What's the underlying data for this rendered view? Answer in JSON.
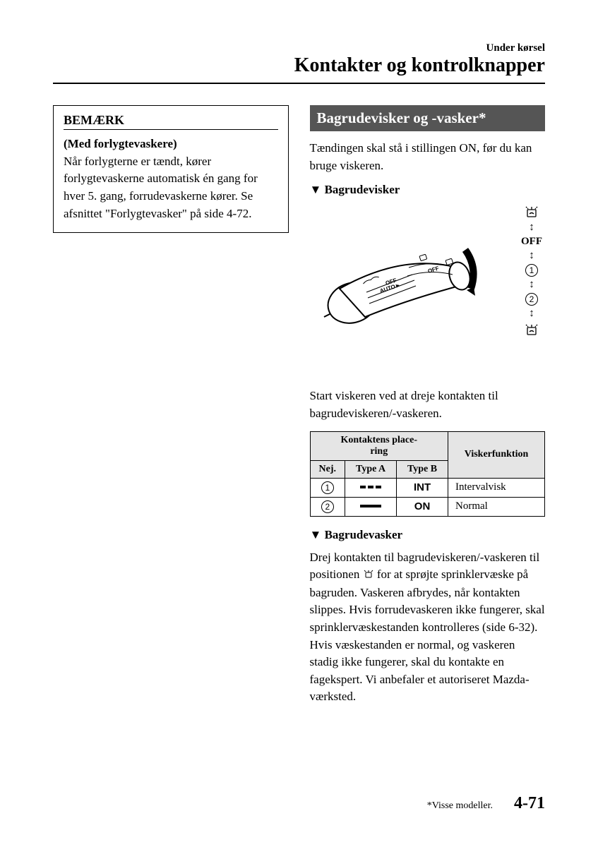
{
  "header": {
    "section": "Under kørsel",
    "title": "Kontakter og kontrolknapper"
  },
  "left": {
    "note_title": "BEMÆRK",
    "note_sub": "(Med forlygtevaskere)",
    "note_text": "Når forlygterne er tændt, kører forlygtevaskerne automatisk én gang for hver 5. gang, forrudevaskerne kører. Se afsnittet \"Forlygtevasker\" på side 4-72."
  },
  "right": {
    "banner": "Bagrudevisker og -vasker*",
    "intro": "Tændingen skal stå i stillingen ON, før du kan bruge viskeren.",
    "sub1": "Bagrudevisker",
    "ladder_off": "OFF",
    "after_diagram": "Start viskeren ved at dreje kontakten til bagrudeviskeren/-vaskeren.",
    "table": {
      "h1": "Kontaktens place-\nring",
      "h2": "Viskerfunktion",
      "h_nej": "Nej.",
      "h_typeA": "Type A",
      "h_typeB": "Type B",
      "r1_b": "INT",
      "r1_func": "Intervalvisk",
      "r2_b": "ON",
      "r2_func": "Normal"
    },
    "sub2": "Bagrudevasker",
    "washer_p1": "Drej kontakten til bagrudeviskeren/-vaskeren til positionen",
    "washer_p2": "for at sprøjte sprinklervæske på bagruden. Vaskeren afbrydes, når kontakten slippes. Hvis forrudevaskeren ikke fungerer, skal sprinklervæskestanden kontrolleres (side 6-32). Hvis væskestanden er normal, og vaskeren stadig ikke fungerer, skal du kontakte en fagekspert. Vi anbefaler et autoriseret Mazda-værksted."
  },
  "footer": {
    "note": "*Visse modeller.",
    "page": "4-71"
  },
  "colors": {
    "banner_bg": "#555555",
    "table_header_bg": "#e5e5e5"
  }
}
